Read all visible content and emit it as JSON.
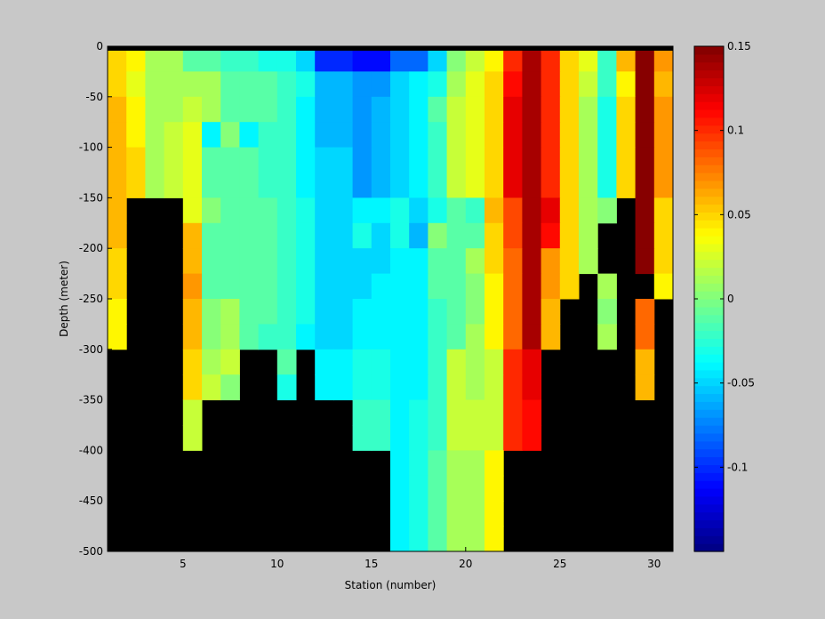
{
  "chart_data": {
    "type": "heatmap",
    "xlabel": "Station (number)",
    "ylabel": "Depth (meter)",
    "x_range": [
      1,
      31
    ],
    "y_range": [
      -500,
      0
    ],
    "x_ticks": [
      5,
      10,
      15,
      20,
      25,
      30
    ],
    "y_ticks": [
      0,
      -50,
      -100,
      -150,
      -200,
      -250,
      -300,
      -350,
      -400,
      -450,
      -500
    ],
    "colorbar": {
      "range": [
        -0.15,
        0.15
      ],
      "ticks": [
        0.15,
        0.1,
        0.05,
        0,
        -0.05,
        -0.1
      ],
      "colormap": "jet",
      "levels": 64
    },
    "missing_color": "#000000",
    "cell_depth": 25,
    "stations": [
      1,
      2,
      3,
      4,
      5,
      6,
      7,
      8,
      9,
      10,
      11,
      12,
      13,
      14,
      15,
      16,
      17,
      18,
      19,
      20,
      21,
      22,
      23,
      24,
      25,
      26,
      27,
      28,
      29,
      30
    ],
    "depth_rows": [
      -12.5,
      -37.5,
      -62.5,
      -87.5,
      -112.5,
      -137.5,
      -162.5,
      -187.5,
      -212.5,
      -237.5,
      -262.5,
      -287.5,
      -312.5,
      -337.5,
      -362.5,
      -387.5,
      -412.5,
      -437.5,
      -462.5,
      -487.5
    ],
    "values": [
      [
        0.05,
        0.04,
        0.01,
        0.01,
        -0.01,
        -0.01,
        -0.02,
        -0.02,
        -0.03,
        -0.03,
        -0.05,
        -0.1,
        -0.1,
        -0.11,
        -0.11,
        -0.08,
        -0.08,
        -0.05,
        0.0,
        0.02,
        0.04,
        0.1,
        0.14,
        0.1,
        0.05,
        0.03,
        -0.02,
        0.06,
        0.15,
        0.07
      ],
      [
        0.05,
        0.03,
        0.01,
        0.01,
        0.01,
        0.01,
        -0.01,
        -0.01,
        -0.01,
        -0.02,
        -0.03,
        -0.06,
        -0.06,
        -0.07,
        -0.07,
        -0.05,
        -0.04,
        -0.03,
        0.01,
        0.03,
        0.05,
        0.11,
        0.14,
        0.1,
        0.05,
        0.02,
        -0.02,
        0.04,
        0.15,
        0.06
      ],
      [
        0.06,
        0.04,
        0.01,
        0.01,
        0.02,
        0.01,
        -0.01,
        -0.01,
        -0.01,
        -0.02,
        -0.04,
        -0.06,
        -0.06,
        -0.07,
        -0.06,
        -0.05,
        -0.04,
        -0.01,
        0.02,
        0.03,
        0.05,
        0.12,
        0.14,
        0.1,
        0.05,
        0.01,
        -0.03,
        0.05,
        0.15,
        0.07
      ],
      [
        0.06,
        0.04,
        0.01,
        0.02,
        0.03,
        -0.04,
        0.0,
        -0.04,
        -0.02,
        -0.02,
        -0.04,
        -0.06,
        -0.06,
        -0.07,
        -0.06,
        -0.05,
        -0.04,
        -0.02,
        0.02,
        0.03,
        0.05,
        0.12,
        0.14,
        0.1,
        0.05,
        0.01,
        -0.03,
        0.05,
        0.15,
        0.07
      ],
      [
        0.06,
        0.05,
        0.01,
        0.02,
        0.03,
        -0.01,
        -0.01,
        -0.01,
        -0.02,
        -0.02,
        -0.04,
        -0.05,
        -0.05,
        -0.07,
        -0.06,
        -0.05,
        -0.04,
        -0.02,
        0.02,
        0.03,
        0.05,
        0.12,
        0.14,
        0.1,
        0.05,
        0.01,
        -0.03,
        0.05,
        0.15,
        0.07
      ],
      [
        0.06,
        0.05,
        0.01,
        0.02,
        0.03,
        -0.01,
        -0.01,
        -0.01,
        -0.02,
        -0.02,
        -0.04,
        -0.05,
        -0.05,
        -0.07,
        -0.06,
        -0.05,
        -0.04,
        -0.02,
        0.02,
        0.03,
        0.05,
        0.12,
        0.14,
        0.1,
        0.05,
        0.01,
        -0.03,
        0.05,
        0.15,
        0.07
      ],
      [
        0.06,
        null,
        null,
        null,
        0.03,
        0.0,
        -0.01,
        -0.01,
        -0.01,
        -0.02,
        -0.03,
        -0.05,
        -0.05,
        -0.04,
        -0.04,
        -0.03,
        -0.05,
        -0.03,
        -0.01,
        -0.02,
        0.06,
        0.09,
        0.14,
        0.12,
        0.05,
        0.01,
        0.0,
        null,
        0.15,
        0.05
      ],
      [
        0.06,
        null,
        null,
        null,
        0.06,
        -0.01,
        -0.01,
        -0.01,
        -0.01,
        -0.02,
        -0.03,
        -0.05,
        -0.05,
        -0.03,
        -0.05,
        -0.03,
        -0.06,
        0.0,
        -0.01,
        -0.01,
        0.05,
        0.09,
        0.14,
        0.11,
        0.05,
        0.01,
        null,
        null,
        0.15,
        0.05
      ],
      [
        0.05,
        null,
        null,
        null,
        0.06,
        -0.01,
        -0.01,
        -0.01,
        -0.01,
        -0.02,
        -0.03,
        -0.05,
        -0.05,
        -0.05,
        -0.05,
        -0.04,
        -0.04,
        -0.01,
        -0.01,
        0.01,
        0.05,
        0.08,
        0.14,
        0.07,
        0.05,
        0.01,
        null,
        null,
        0.15,
        0.05
      ],
      [
        0.05,
        null,
        null,
        null,
        0.07,
        -0.01,
        -0.01,
        -0.01,
        -0.01,
        -0.02,
        -0.03,
        -0.05,
        -0.05,
        -0.05,
        -0.04,
        -0.04,
        -0.04,
        -0.01,
        -0.01,
        0.0,
        0.04,
        0.08,
        0.14,
        0.07,
        0.05,
        null,
        0.01,
        null,
        null,
        0.04
      ],
      [
        0.04,
        null,
        null,
        null,
        0.06,
        0.0,
        0.01,
        -0.01,
        -0.01,
        -0.02,
        -0.03,
        -0.05,
        -0.05,
        -0.04,
        -0.04,
        -0.04,
        -0.04,
        -0.02,
        -0.01,
        0.0,
        0.04,
        0.08,
        0.14,
        0.06,
        null,
        null,
        0.0,
        null,
        0.08,
        null
      ],
      [
        0.04,
        null,
        null,
        null,
        0.06,
        0.0,
        0.01,
        -0.01,
        -0.02,
        -0.02,
        -0.04,
        -0.05,
        -0.05,
        -0.04,
        -0.04,
        -0.04,
        -0.04,
        -0.02,
        -0.01,
        0.01,
        0.04,
        0.08,
        0.14,
        0.06,
        null,
        null,
        0.01,
        null,
        0.08,
        null
      ],
      [
        null,
        null,
        null,
        null,
        0.05,
        0.01,
        0.02,
        null,
        null,
        -0.01,
        null,
        -0.04,
        -0.04,
        -0.03,
        -0.03,
        -0.04,
        -0.04,
        -0.02,
        0.02,
        0.01,
        0.02,
        0.1,
        0.12,
        null,
        null,
        null,
        null,
        null,
        0.06,
        null
      ],
      [
        null,
        null,
        null,
        null,
        0.05,
        0.02,
        0.0,
        null,
        null,
        -0.03,
        null,
        -0.04,
        -0.04,
        -0.03,
        -0.03,
        -0.04,
        -0.04,
        -0.02,
        0.02,
        0.01,
        0.02,
        0.1,
        0.12,
        null,
        null,
        null,
        null,
        null,
        0.06,
        null
      ],
      [
        null,
        null,
        null,
        null,
        0.02,
        null,
        null,
        null,
        null,
        null,
        null,
        null,
        null,
        -0.02,
        -0.02,
        -0.04,
        -0.03,
        -0.02,
        0.02,
        0.02,
        0.02,
        0.1,
        0.11,
        null,
        null,
        null,
        null,
        null,
        null,
        null
      ],
      [
        null,
        null,
        null,
        null,
        0.02,
        null,
        null,
        null,
        null,
        null,
        null,
        null,
        null,
        -0.02,
        -0.02,
        -0.04,
        -0.03,
        -0.02,
        0.02,
        0.02,
        0.02,
        0.1,
        0.11,
        null,
        null,
        null,
        null,
        null,
        null,
        null
      ],
      [
        null,
        null,
        null,
        null,
        null,
        null,
        null,
        null,
        null,
        null,
        null,
        null,
        null,
        null,
        null,
        -0.04,
        -0.03,
        -0.01,
        0.01,
        0.01,
        0.04,
        null,
        null,
        null,
        null,
        null,
        null,
        null,
        null,
        null
      ],
      [
        null,
        null,
        null,
        null,
        null,
        null,
        null,
        null,
        null,
        null,
        null,
        null,
        null,
        null,
        null,
        -0.04,
        -0.03,
        -0.01,
        0.01,
        0.01,
        0.04,
        null,
        null,
        null,
        null,
        null,
        null,
        null,
        null,
        null
      ],
      [
        null,
        null,
        null,
        null,
        null,
        null,
        null,
        null,
        null,
        null,
        null,
        null,
        null,
        null,
        null,
        -0.04,
        -0.03,
        -0.01,
        0.01,
        0.01,
        0.04,
        null,
        null,
        null,
        null,
        null,
        null,
        null,
        null,
        null
      ],
      [
        null,
        null,
        null,
        null,
        null,
        null,
        null,
        null,
        null,
        null,
        null,
        null,
        null,
        null,
        null,
        -0.04,
        -0.03,
        -0.01,
        0.01,
        0.01,
        0.04,
        null,
        null,
        null,
        null,
        null,
        null,
        null,
        null,
        null
      ]
    ]
  }
}
